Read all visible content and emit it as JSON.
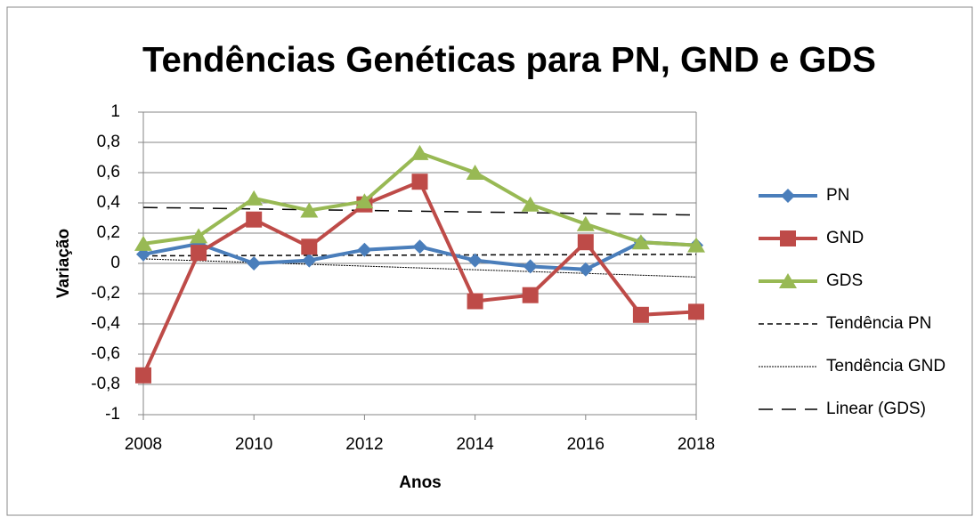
{
  "chart_data": {
    "type": "line",
    "title": "Tendências Genéticas para PN, GND e GDS",
    "x_label": "Anos",
    "y_label": "Variação",
    "x": [
      2008,
      2009,
      2010,
      2011,
      2012,
      2013,
      2014,
      2015,
      2016,
      2017,
      2018
    ],
    "series": [
      {
        "name": "PN",
        "color": "#4a7ebb",
        "marker": "diamond",
        "values": [
          0.06,
          0.13,
          0.0,
          0.02,
          0.09,
          0.11,
          0.02,
          -0.02,
          -0.04,
          0.14,
          0.12
        ]
      },
      {
        "name": "GND",
        "color": "#be4b48",
        "marker": "square",
        "values": [
          -0.74,
          0.07,
          0.29,
          0.11,
          0.39,
          0.54,
          -0.25,
          -0.21,
          0.14,
          -0.34,
          -0.32
        ]
      },
      {
        "name": "GDS",
        "color": "#98b954",
        "marker": "triangle",
        "values": [
          0.13,
          0.18,
          0.43,
          0.35,
          0.41,
          0.73,
          0.6,
          0.39,
          0.26,
          0.14,
          0.12
        ]
      }
    ],
    "trendlines": [
      {
        "name": "Tendência PN",
        "color": "#000000",
        "style": "dashed",
        "x": [
          2008,
          2018
        ],
        "values": [
          0.05,
          0.06
        ]
      },
      {
        "name": "Tendência GND",
        "color": "#000000",
        "style": "dotted",
        "x": [
          2008,
          2018
        ],
        "values": [
          0.03,
          -0.09
        ]
      },
      {
        "name": "Linear (GDS)",
        "color": "#000000",
        "style": "longdash",
        "x": [
          2008,
          2018
        ],
        "values": [
          0.37,
          0.32
        ]
      }
    ],
    "xlim": [
      2008,
      2018
    ],
    "xticks": [
      2008,
      2010,
      2012,
      2014,
      2016,
      2018
    ],
    "ylim": [
      -1,
      1
    ],
    "yticks": [
      -1,
      {
        "value": -0.8,
        "label": "-0,8"
      },
      {
        "value": -0.6,
        "label": "-0,6"
      },
      {
        "value": -0.4,
        "label": "-0,4"
      },
      {
        "value": -0.2,
        "label": "-0,2"
      },
      0,
      {
        "value": 0.2,
        "label": "0,2"
      },
      {
        "value": 0.4,
        "label": "0,4"
      },
      {
        "value": 0.6,
        "label": "0,6"
      },
      {
        "value": 0.8,
        "label": "0,8"
      },
      1
    ],
    "grid": true,
    "legend": "right"
  }
}
